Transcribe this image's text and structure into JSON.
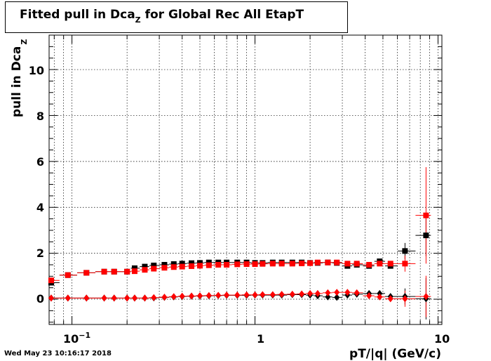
{
  "title_main": "Fitted pull in Dca",
  "title_sub": "Z",
  "title_rest": " for Global Rec All EtapT",
  "timestamp": "Wed May 23 10:16:17 2018",
  "colors": {
    "black": "#000000",
    "red": "#ff0000",
    "grid": "#000000"
  },
  "chart_data": {
    "type": "scatter",
    "title": "Fitted pull in Dca Z for Global Rec All EtapT",
    "xlabel": "pT/|q| (GeV/c)",
    "ylabel": "pull in Dca Z",
    "xscale": "log",
    "xlim": [
      0.075,
      10.5
    ],
    "ylim": [
      -1.1,
      11.5
    ],
    "x_ticks": [
      "10^-1",
      "1",
      "10"
    ],
    "y_ticks": [
      "0",
      "2",
      "4",
      "6",
      "8",
      "10"
    ],
    "grid": true,
    "series": [
      {
        "marker": "square",
        "color": "black",
        "points": [
          [
            0.077,
            0.72
          ],
          [
            0.095,
            1.05
          ],
          [
            0.12,
            1.15
          ],
          [
            0.15,
            1.2
          ],
          [
            0.17,
            1.2
          ],
          [
            0.2,
            1.2
          ],
          [
            0.22,
            1.35
          ],
          [
            0.25,
            1.42
          ],
          [
            0.28,
            1.47
          ],
          [
            0.32,
            1.5
          ],
          [
            0.36,
            1.53
          ],
          [
            0.4,
            1.55
          ],
          [
            0.45,
            1.57
          ],
          [
            0.5,
            1.58
          ],
          [
            0.56,
            1.6
          ],
          [
            0.63,
            1.6
          ],
          [
            0.7,
            1.6
          ],
          [
            0.8,
            1.6
          ],
          [
            0.9,
            1.6
          ],
          [
            1.0,
            1.58
          ],
          [
            1.1,
            1.58
          ],
          [
            1.25,
            1.6
          ],
          [
            1.4,
            1.6
          ],
          [
            1.6,
            1.6
          ],
          [
            1.8,
            1.6
          ],
          [
            2.0,
            1.58
          ],
          [
            2.2,
            1.58
          ],
          [
            2.5,
            1.6
          ],
          [
            2.8,
            1.58
          ],
          [
            3.2,
            1.45
          ],
          [
            3.6,
            1.5
          ],
          [
            4.2,
            1.45
          ],
          [
            4.8,
            1.65
          ],
          [
            5.5,
            1.45
          ],
          [
            6.6,
            2.1
          ],
          [
            8.6,
            2.78
          ]
        ]
      },
      {
        "marker": "square",
        "color": "red",
        "points": [
          [
            0.077,
            0.82
          ],
          [
            0.095,
            1.05
          ],
          [
            0.12,
            1.15
          ],
          [
            0.15,
            1.2
          ],
          [
            0.17,
            1.2
          ],
          [
            0.2,
            1.2
          ],
          [
            0.22,
            1.22
          ],
          [
            0.25,
            1.28
          ],
          [
            0.28,
            1.33
          ],
          [
            0.32,
            1.37
          ],
          [
            0.36,
            1.4
          ],
          [
            0.4,
            1.42
          ],
          [
            0.45,
            1.44
          ],
          [
            0.5,
            1.46
          ],
          [
            0.56,
            1.48
          ],
          [
            0.63,
            1.5
          ],
          [
            0.7,
            1.5
          ],
          [
            0.8,
            1.52
          ],
          [
            0.9,
            1.53
          ],
          [
            1.0,
            1.53
          ],
          [
            1.1,
            1.54
          ],
          [
            1.25,
            1.55
          ],
          [
            1.4,
            1.55
          ],
          [
            1.6,
            1.55
          ],
          [
            1.8,
            1.56
          ],
          [
            2.0,
            1.57
          ],
          [
            2.2,
            1.6
          ],
          [
            2.5,
            1.6
          ],
          [
            2.8,
            1.6
          ],
          [
            3.2,
            1.55
          ],
          [
            3.6,
            1.55
          ],
          [
            4.2,
            1.5
          ],
          [
            4.8,
            1.55
          ],
          [
            5.5,
            1.55
          ],
          [
            6.6,
            1.55
          ],
          [
            8.6,
            3.65
          ]
        ]
      },
      {
        "marker": "diamond",
        "color": "black",
        "points": [
          [
            0.077,
            0.05
          ],
          [
            0.095,
            0.05
          ],
          [
            0.12,
            0.05
          ],
          [
            0.15,
            0.05
          ],
          [
            0.17,
            0.05
          ],
          [
            0.2,
            0.05
          ],
          [
            0.22,
            0.05
          ],
          [
            0.25,
            0.05
          ],
          [
            0.28,
            0.06
          ],
          [
            0.32,
            0.08
          ],
          [
            0.36,
            0.1
          ],
          [
            0.4,
            0.12
          ],
          [
            0.45,
            0.13
          ],
          [
            0.5,
            0.14
          ],
          [
            0.56,
            0.15
          ],
          [
            0.63,
            0.16
          ],
          [
            0.7,
            0.17
          ],
          [
            0.8,
            0.17
          ],
          [
            0.9,
            0.17
          ],
          [
            1.0,
            0.18
          ],
          [
            1.1,
            0.18
          ],
          [
            1.25,
            0.18
          ],
          [
            1.4,
            0.18
          ],
          [
            1.6,
            0.2
          ],
          [
            1.8,
            0.2
          ],
          [
            2.0,
            0.18
          ],
          [
            2.2,
            0.15
          ],
          [
            2.5,
            0.1
          ],
          [
            2.8,
            0.08
          ],
          [
            3.2,
            0.18
          ],
          [
            3.6,
            0.22
          ],
          [
            4.2,
            0.25
          ],
          [
            4.8,
            0.25
          ],
          [
            5.5,
            0.12
          ],
          [
            6.6,
            0.12
          ],
          [
            8.6,
            0.02
          ]
        ]
      },
      {
        "marker": "diamond",
        "color": "red",
        "points": [
          [
            0.077,
            0.05
          ],
          [
            0.095,
            0.05
          ],
          [
            0.12,
            0.05
          ],
          [
            0.15,
            0.05
          ],
          [
            0.17,
            0.05
          ],
          [
            0.2,
            0.05
          ],
          [
            0.22,
            0.05
          ],
          [
            0.25,
            0.05
          ],
          [
            0.28,
            0.07
          ],
          [
            0.32,
            0.09
          ],
          [
            0.36,
            0.11
          ],
          [
            0.4,
            0.13
          ],
          [
            0.45,
            0.14
          ],
          [
            0.5,
            0.15
          ],
          [
            0.56,
            0.16
          ],
          [
            0.63,
            0.17
          ],
          [
            0.7,
            0.18
          ],
          [
            0.8,
            0.18
          ],
          [
            0.9,
            0.19
          ],
          [
            1.0,
            0.19
          ],
          [
            1.1,
            0.2
          ],
          [
            1.25,
            0.2
          ],
          [
            1.4,
            0.21
          ],
          [
            1.6,
            0.22
          ],
          [
            1.8,
            0.23
          ],
          [
            2.0,
            0.25
          ],
          [
            2.2,
            0.25
          ],
          [
            2.5,
            0.28
          ],
          [
            2.8,
            0.3
          ],
          [
            3.2,
            0.3
          ],
          [
            3.6,
            0.28
          ],
          [
            4.2,
            0.15
          ],
          [
            4.8,
            0.1
          ],
          [
            5.5,
            0.02
          ],
          [
            6.6,
            0.02
          ],
          [
            8.6,
            0.12
          ]
        ]
      }
    ]
  }
}
